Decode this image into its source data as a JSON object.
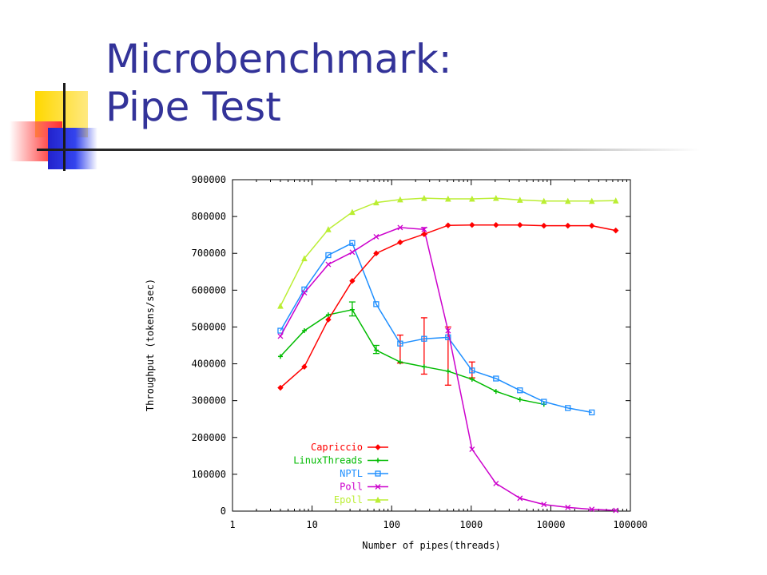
{
  "slide": {
    "title_line1": "Microbenchmark:",
    "title_line2": "Pipe Test"
  },
  "chart_data": {
    "type": "line",
    "xlabel": "Number of pipes(threads)",
    "ylabel": "Throughput (tokens/sec)",
    "x_scale": "log",
    "xlim": [
      1,
      100000
    ],
    "ylim": [
      0,
      900000
    ],
    "x_ticks": [
      "1",
      "10",
      "100",
      "1000",
      "10000",
      "100000"
    ],
    "y_ticks": [
      "0",
      "100000",
      "200000",
      "300000",
      "400000",
      "500000",
      "600000",
      "700000",
      "800000",
      "900000"
    ],
    "legend_position": "bottom-left",
    "grid": false,
    "series": [
      {
        "name": "Capriccio",
        "color": "#ff0000",
        "marker": "diamond",
        "x": [
          4,
          8,
          16,
          32,
          64,
          128,
          256,
          512,
          1024,
          2048,
          4096,
          8192,
          16384,
          32768,
          65536
        ],
        "y": [
          335000,
          392000,
          520000,
          625000,
          700000,
          730000,
          752000,
          776000,
          777000,
          777000,
          777000,
          775000,
          775000,
          775000,
          762000
        ]
      },
      {
        "name": "LinuxThreads",
        "color": "#00bb00",
        "marker": "plus",
        "x": [
          4,
          8,
          16,
          32,
          64,
          128,
          256,
          512,
          1024,
          2048,
          4096,
          8192
        ],
        "y": [
          420000,
          490000,
          533000,
          547000,
          437000,
          405000,
          392000,
          380000,
          358000,
          325000,
          303000,
          290000
        ]
      },
      {
        "name": "NPTL",
        "color": "#1f8fff",
        "marker": "square",
        "x": [
          4,
          8,
          16,
          32,
          64,
          128,
          256,
          512,
          1024,
          2048,
          4096,
          8192,
          16384,
          32768
        ],
        "y": [
          490000,
          602000,
          695000,
          728000,
          562000,
          455000,
          468000,
          472000,
          382000,
          360000,
          328000,
          297000,
          280000,
          268000
        ]
      },
      {
        "name": "Poll",
        "color": "#cc00cc",
        "marker": "x",
        "x": [
          4,
          8,
          16,
          32,
          64,
          128,
          256,
          512,
          1024,
          2048,
          4096,
          8192,
          16384,
          32768,
          65536
        ],
        "y": [
          475000,
          593000,
          670000,
          703000,
          745000,
          770000,
          765000,
          490000,
          168000,
          75000,
          35000,
          18000,
          10000,
          5000,
          2000
        ]
      },
      {
        "name": "Epoll",
        "color": "#bbee33",
        "marker": "triangle",
        "x": [
          4,
          8,
          16,
          32,
          64,
          128,
          256,
          512,
          1024,
          2048,
          4096,
          8192,
          16384,
          32768,
          65536
        ],
        "y": [
          557000,
          686000,
          765000,
          812000,
          838000,
          846000,
          850000,
          848000,
          848000,
          850000,
          845000,
          842000,
          842000,
          842000,
          843000
        ]
      }
    ],
    "error_bars": [
      {
        "series": "Capriccio",
        "x": 256,
        "low": 372000,
        "high": 525000
      },
      {
        "series": "Capriccio",
        "x": 512,
        "low": 342000,
        "high": 500000
      },
      {
        "series": "Capriccio",
        "x": 1024,
        "low": 362000,
        "high": 405000
      },
      {
        "series": "Capriccio",
        "x": 128,
        "low": 402000,
        "high": 478000
      },
      {
        "series": "LinuxThreads",
        "x": 32,
        "low": 530000,
        "high": 568000
      },
      {
        "series": "LinuxThreads",
        "x": 64,
        "low": 428000,
        "high": 450000
      },
      {
        "series": "Poll",
        "x": 256,
        "low": 752000,
        "high": 770000
      }
    ]
  }
}
